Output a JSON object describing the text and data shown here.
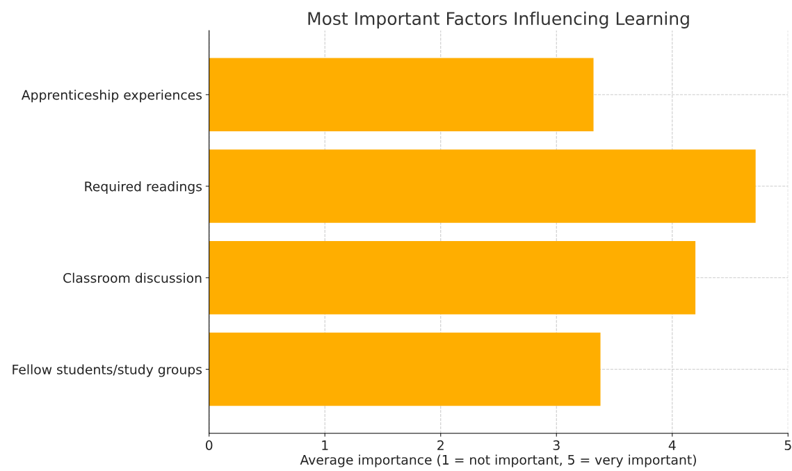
{
  "chart_data": {
    "type": "bar",
    "orientation": "horizontal",
    "title": "Most Important Factors Influencing Learning",
    "xlabel": "Average importance (1 = not important, 5 = very important)",
    "categories": [
      "Apprenticeship experiences",
      "Required readings",
      "Classroom discussion",
      "Fellow students/study groups"
    ],
    "values": [
      3.32,
      4.72,
      4.2,
      3.38
    ],
    "color": "#ffae00",
    "xlim": [
      0,
      5
    ],
    "xticks": [
      0,
      1,
      2,
      3,
      4,
      5
    ],
    "grid": true
  }
}
